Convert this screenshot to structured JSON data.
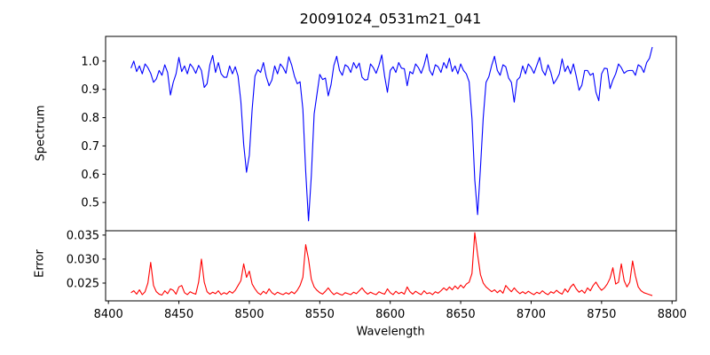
{
  "figure": {
    "title": "20091024_0531m21_041",
    "background_color": "#ffffff",
    "spine_color": "#000000"
  },
  "chart_data": {
    "type": "line",
    "title": "20091024_0531m21_041",
    "xlabel": "Wavelength",
    "grid": false,
    "legend": null,
    "xlim": [
      8398,
      8803
    ],
    "xticks": [
      8400,
      8450,
      8500,
      8550,
      8600,
      8650,
      8700,
      8750,
      8800
    ],
    "xtick_labels": [
      "8400",
      "8450",
      "8500",
      "8550",
      "8600",
      "8650",
      "8700",
      "8750",
      "8800"
    ],
    "notable_features": {
      "absorption_lines_wavelengths": [
        8498,
        8542,
        8662
      ],
      "absorption_line_depths": [
        0.6,
        0.44,
        0.46
      ],
      "error_peak_points": [
        [
          8430,
          0.0293
        ],
        [
          8466,
          0.03
        ],
        [
          8496,
          0.029
        ],
        [
          8540,
          0.033
        ],
        [
          8660,
          0.0355
        ],
        [
          8758,
          0.0282
        ],
        [
          8764,
          0.029
        ],
        [
          8772,
          0.0296
        ]
      ]
    },
    "panels": [
      {
        "name": "spectrum",
        "ylabel": "Spectrum",
        "line_color": "#0000ff",
        "ylim": [
          0.4,
          1.0875
        ],
        "yticks": [
          0.5,
          0.6,
          0.7,
          0.8,
          0.9,
          1.0
        ],
        "ytick_labels": [
          "0.5",
          "0.6",
          "0.7",
          "0.8",
          "0.9",
          "1.0"
        ],
        "x_start": 8416,
        "x_step": 2,
        "values": [
          0.975,
          1.0,
          0.963,
          0.983,
          0.955,
          0.99,
          0.977,
          0.957,
          0.925,
          0.937,
          0.967,
          0.95,
          0.987,
          0.96,
          0.88,
          0.925,
          0.955,
          1.013,
          0.963,
          0.983,
          0.955,
          0.99,
          0.977,
          0.957,
          0.985,
          0.967,
          0.907,
          0.92,
          0.987,
          1.02,
          0.96,
          0.995,
          0.955,
          0.943,
          0.943,
          0.983,
          0.955,
          0.98,
          0.947,
          0.857,
          0.705,
          0.607,
          0.667,
          0.83,
          0.947,
          0.97,
          0.96,
          0.995,
          0.945,
          0.913,
          0.933,
          0.983,
          0.955,
          0.99,
          0.977,
          0.957,
          1.015,
          0.987,
          0.947,
          0.92,
          0.927,
          0.83,
          0.61,
          0.435,
          0.595,
          0.813,
          0.883,
          0.953,
          0.935,
          0.94,
          0.877,
          0.917,
          0.985,
          1.017,
          0.967,
          0.95,
          0.987,
          0.98,
          0.96,
          0.995,
          0.975,
          0.993,
          0.943,
          0.933,
          0.935,
          0.99,
          0.977,
          0.957,
          0.985,
          1.022,
          0.947,
          0.89,
          0.967,
          0.98,
          0.96,
          0.995,
          0.975,
          0.973,
          0.913,
          0.963,
          0.955,
          0.99,
          0.977,
          0.957,
          0.985,
          1.025,
          0.967,
          0.95,
          0.987,
          0.98,
          0.96,
          0.995,
          0.975,
          1.01,
          0.963,
          0.983,
          0.955,
          0.99,
          0.967,
          0.955,
          0.927,
          0.797,
          0.58,
          0.457,
          0.62,
          0.8,
          0.925,
          0.945,
          0.985,
          1.017,
          0.967,
          0.95,
          0.987,
          0.98,
          0.94,
          0.925,
          0.855,
          0.933,
          0.943,
          0.983,
          0.955,
          0.99,
          0.977,
          0.957,
          0.985,
          1.013,
          0.967,
          0.95,
          0.987,
          0.96,
          0.92,
          0.935,
          0.955,
          1.008,
          0.963,
          0.983,
          0.955,
          0.99,
          0.947,
          0.897,
          0.915,
          0.967,
          0.967,
          0.95,
          0.957,
          0.89,
          0.86,
          0.955,
          0.975,
          0.973,
          0.903,
          0.933,
          0.955,
          0.99,
          0.977,
          0.957,
          0.965,
          0.967,
          0.967,
          0.95,
          0.987,
          0.98,
          0.96,
          0.995,
          1.01,
          1.05
        ]
      },
      {
        "name": "error",
        "ylabel": "Error",
        "line_color": "#ff0000",
        "ylim": [
          0.0213,
          0.0359
        ],
        "yticks": [
          0.025,
          0.03,
          0.035
        ],
        "ytick_labels": [
          "0.025",
          "0.030",
          "0.035"
        ],
        "x_start": 8416,
        "x_step": 2,
        "values": [
          0.023,
          0.0234,
          0.0227,
          0.0236,
          0.0226,
          0.0232,
          0.025,
          0.0293,
          0.0245,
          0.0232,
          0.0227,
          0.0225,
          0.0234,
          0.0228,
          0.0238,
          0.0235,
          0.0227,
          0.0242,
          0.0245,
          0.023,
          0.0226,
          0.0232,
          0.0229,
          0.0227,
          0.0252,
          0.03,
          0.0252,
          0.0232,
          0.0227,
          0.0231,
          0.0228,
          0.0234,
          0.0226,
          0.023,
          0.0227,
          0.0233,
          0.0229,
          0.0235,
          0.0245,
          0.0255,
          0.029,
          0.0262,
          0.0275,
          0.0248,
          0.0238,
          0.023,
          0.0226,
          0.0233,
          0.0228,
          0.0238,
          0.023,
          0.0226,
          0.0231,
          0.0228,
          0.0226,
          0.023,
          0.0227,
          0.0232,
          0.0228,
          0.0235,
          0.0245,
          0.0262,
          0.033,
          0.03,
          0.0258,
          0.0242,
          0.0235,
          0.023,
          0.0227,
          0.0233,
          0.024,
          0.0232,
          0.0226,
          0.023,
          0.0227,
          0.0225,
          0.023,
          0.0228,
          0.0226,
          0.0231,
          0.0228,
          0.0234,
          0.024,
          0.0232,
          0.0227,
          0.0231,
          0.0228,
          0.0226,
          0.0232,
          0.0229,
          0.0227,
          0.0238,
          0.023,
          0.0226,
          0.0233,
          0.0228,
          0.0231,
          0.0227,
          0.0242,
          0.0232,
          0.0227,
          0.0233,
          0.0229,
          0.0226,
          0.0234,
          0.0228,
          0.023,
          0.0226,
          0.0232,
          0.0229,
          0.0234,
          0.024,
          0.0235,
          0.0242,
          0.0236,
          0.0244,
          0.0238,
          0.0246,
          0.024,
          0.0248,
          0.0252,
          0.027,
          0.0355,
          0.031,
          0.0268,
          0.025,
          0.0242,
          0.0237,
          0.0232,
          0.0236,
          0.023,
          0.0235,
          0.0229,
          0.0245,
          0.0238,
          0.0232,
          0.024,
          0.0233,
          0.0228,
          0.0232,
          0.0228,
          0.0233,
          0.0229,
          0.0226,
          0.0231,
          0.0228,
          0.0234,
          0.0229,
          0.0226,
          0.0232,
          0.0229,
          0.0235,
          0.023,
          0.0227,
          0.0238,
          0.0231,
          0.0242,
          0.0248,
          0.0238,
          0.0231,
          0.0235,
          0.0229,
          0.024,
          0.0234,
          0.0245,
          0.0252,
          0.0242,
          0.0235,
          0.024,
          0.0248,
          0.026,
          0.0282,
          0.0248,
          0.0252,
          0.029,
          0.0255,
          0.0242,
          0.0252,
          0.0296,
          0.0265,
          0.0242,
          0.0234,
          0.023,
          0.0228,
          0.0226,
          0.0224
        ]
      }
    ]
  }
}
